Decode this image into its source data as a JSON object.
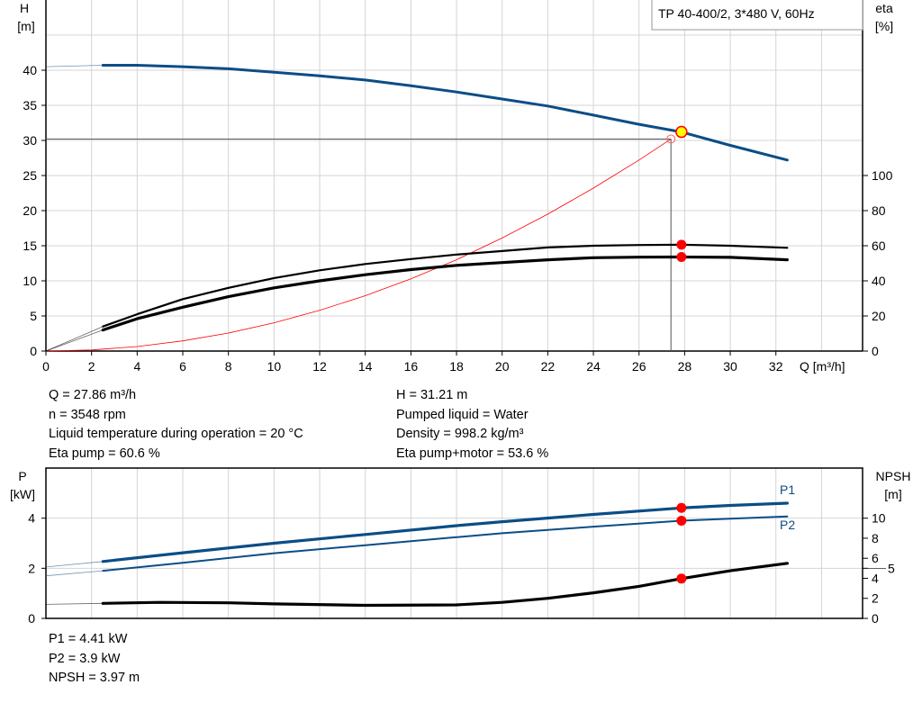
{
  "chart_data": [
    {
      "type": "line",
      "title": "TP 40-400/2, 3*480 V, 60Hz",
      "xlabel": "Q [m³/h]",
      "ylabel_left": [
        "H",
        "[m]"
      ],
      "ylabel_right": [
        "eta",
        "[%]"
      ],
      "xlim": [
        0,
        35.8
      ],
      "ylim_left": [
        0,
        50
      ],
      "ylim_right": [
        0,
        200
      ],
      "x_ticks": [
        "0",
        "2",
        "4",
        "6",
        "8",
        "10",
        "12",
        "14",
        "16",
        "18",
        "20",
        "22",
        "24",
        "26",
        "28",
        "30",
        "32"
      ],
      "y_left_ticks": [
        "0",
        "5",
        "10",
        "15",
        "20",
        "25",
        "30",
        "35",
        "40"
      ],
      "y_right_ticks": [
        "0",
        "20",
        "40",
        "60",
        "80",
        "100"
      ],
      "grid": true,
      "series": [
        {
          "key": "H",
          "axis": "left",
          "color": "#0b4d86",
          "x": [
            0,
            2.5,
            4,
            6,
            8,
            10,
            12,
            14,
            16,
            18,
            20,
            22,
            24,
            26,
            27.86,
            30,
            32.5
          ],
          "y": [
            40.5,
            40.7,
            40.7,
            40.5,
            40.2,
            39.7,
            39.2,
            38.6,
            37.8,
            36.9,
            35.9,
            34.9,
            33.6,
            32.3,
            31.21,
            29.3,
            27.2
          ]
        },
        {
          "key": "eta_pump",
          "axis": "right",
          "color": "#000000",
          "x": [
            0,
            2.5,
            4,
            6,
            8,
            10,
            12,
            14,
            16,
            18,
            20,
            22,
            24,
            26,
            27.86,
            30,
            32.5
          ],
          "y": [
            0,
            14,
            21,
            29.6,
            36,
            41.6,
            46,
            49.6,
            52.4,
            55,
            57,
            59,
            60,
            60.4,
            60.6,
            60,
            58.8
          ]
        },
        {
          "key": "eta_pump_motor",
          "axis": "right",
          "color": "#000000",
          "x": [
            0,
            2.5,
            4,
            6,
            8,
            10,
            12,
            14,
            16,
            18,
            20,
            22,
            24,
            26,
            27.86,
            30,
            32.5
          ],
          "y": [
            0,
            12,
            18.4,
            25,
            31,
            36,
            40,
            43.5,
            46.4,
            48.8,
            50.4,
            52,
            53.2,
            53.5,
            53.6,
            53.4,
            52
          ]
        },
        {
          "key": "system",
          "axis": "left",
          "color": "#ff0000",
          "x": [
            0,
            2,
            4,
            6,
            8,
            10,
            12,
            14,
            16,
            18,
            20,
            22,
            24,
            26,
            27.4
          ],
          "y": [
            0,
            0.16,
            0.64,
            1.45,
            2.57,
            4.02,
            5.79,
            7.88,
            10.3,
            13.0,
            16.1,
            19.5,
            23.2,
            27.2,
            30.2
          ]
        }
      ],
      "duty_point": {
        "Q": 27.86,
        "H": 31.21,
        "eta_pump": 60.6,
        "eta_pump_motor": 53.6
      },
      "system_point": {
        "Q": 27.4,
        "H": 30.2
      },
      "marker_colors": {
        "duty": "#ffff00",
        "outline": "#ff0000",
        "dots": "#ff0000"
      }
    },
    {
      "type": "line",
      "ylabel_left": [
        "P",
        "[kW]"
      ],
      "ylabel_right": [
        "NPSH",
        "[m]"
      ],
      "xlim": [
        0,
        35.8
      ],
      "ylim_left": [
        0,
        6
      ],
      "ylim_right": [
        0,
        15
      ],
      "y_left_ticks": [
        "0",
        "2",
        "4"
      ],
      "y_right_ticks": [
        "0",
        "2",
        "4",
        "5",
        "6",
        "8",
        "10"
      ],
      "grid": true,
      "series": [
        {
          "key": "P1",
          "name": "P1",
          "axis": "left",
          "color": "#0b4d86",
          "x": [
            0,
            2.5,
            6,
            10,
            14,
            18,
            20,
            24,
            27.86,
            30,
            32.5
          ],
          "y": [
            2.05,
            2.27,
            2.62,
            3.0,
            3.35,
            3.7,
            3.86,
            4.15,
            4.41,
            4.51,
            4.6
          ]
        },
        {
          "key": "P2",
          "name": "P2",
          "axis": "left",
          "color": "#0b4d86",
          "x": [
            0,
            2.5,
            6,
            10,
            14,
            18,
            20,
            24,
            27.86,
            30,
            32.5
          ],
          "y": [
            1.7,
            1.9,
            2.22,
            2.6,
            2.92,
            3.24,
            3.4,
            3.66,
            3.9,
            3.98,
            4.07
          ]
        },
        {
          "key": "NPSH",
          "axis": "right",
          "color": "#000000",
          "x": [
            0,
            2.5,
            5,
            8,
            10,
            14,
            18,
            20,
            22,
            24,
            26,
            27.86,
            30,
            32.5
          ],
          "y": [
            1.4,
            1.5,
            1.6,
            1.55,
            1.45,
            1.3,
            1.35,
            1.6,
            2.0,
            2.55,
            3.2,
            3.97,
            4.75,
            5.5
          ]
        }
      ],
      "duty_point": {
        "Q": 27.86,
        "P1": 4.41,
        "P2": 3.9,
        "NPSH": 3.97
      }
    }
  ],
  "info_upper": {
    "left": [
      "Q = 27.86 m³/h",
      "n = 3548 rpm",
      "Liquid temperature during operation = 20 °C",
      "Eta pump = 60.6 %"
    ],
    "right": [
      "H = 31.21 m",
      "Pumped liquid = Water",
      "Density = 998.2 kg/m³",
      "Eta pump+motor = 53.6 %"
    ]
  },
  "info_lower": [
    "P1 = 4.41 kW",
    "P2 = 3.9 kW",
    "NPSH = 3.97 m"
  ]
}
